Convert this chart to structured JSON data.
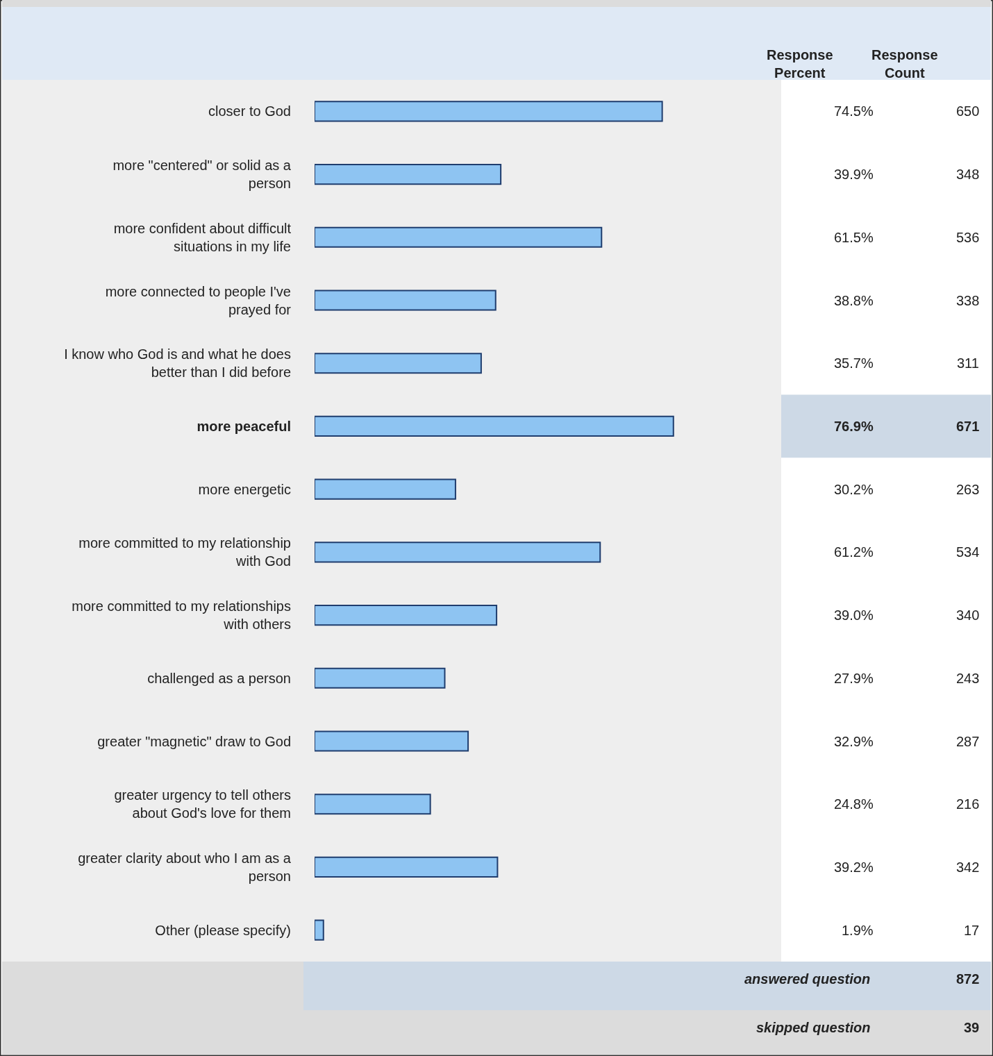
{
  "chart_data": {
    "type": "bar",
    "orientation": "horizontal",
    "categories": [
      "closer to God",
      "more \"centered\" or solid as a person",
      "more confident about difficult situations in my life",
      "more connected to people I've prayed for",
      "I know who God is and what he does better than I did before",
      "more peaceful",
      "more energetic",
      "more committed to my relationship with God",
      "more committed to my relationships with others",
      "challenged as a person",
      "greater \"magnetic\" draw to God",
      "greater urgency to tell others about God's love for them",
      "greater clarity about who I am as a person",
      "Other (please specify)"
    ],
    "values": [
      74.5,
      39.9,
      61.5,
      38.8,
      35.7,
      76.9,
      30.2,
      61.2,
      39.0,
      27.9,
      32.9,
      24.8,
      39.2,
      1.9
    ],
    "value_labels": [
      "74.5%",
      "39.9%",
      "61.5%",
      "38.8%",
      "35.7%",
      "76.9%",
      "30.2%",
      "61.2%",
      "39.0%",
      "27.9%",
      "32.9%",
      "24.8%",
      "39.2%",
      "1.9%"
    ],
    "color": "#8ec4f2",
    "xlim": [
      0,
      100
    ],
    "tick_labels": "y",
    "annotations": [
      "Response Percent",
      "Response Count",
      "650",
      "348",
      "536",
      "338",
      "311",
      "671",
      "263",
      "534",
      "340",
      "243",
      "287",
      "216",
      "342",
      "17",
      "answered question",
      "872",
      "skipped question",
      "39"
    ]
  }
}
